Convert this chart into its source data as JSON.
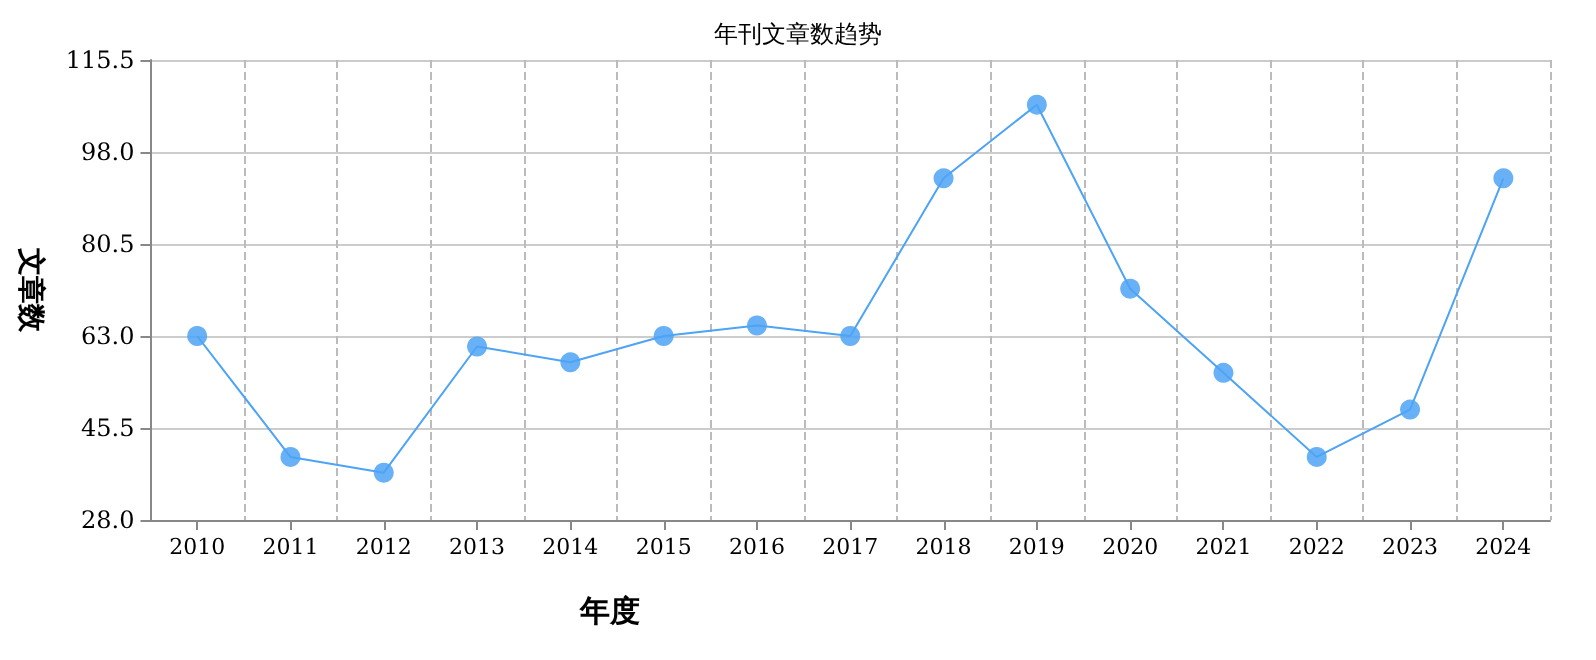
{
  "chart_data": {
    "type": "line",
    "title": "年刊文章数趋势",
    "xlabel": "年度",
    "ylabel": "文章数",
    "categories": [
      "2010",
      "2011",
      "2012",
      "2013",
      "2014",
      "2015",
      "2016",
      "2017",
      "2018",
      "2019",
      "2020",
      "2021",
      "2022",
      "2023",
      "2024"
    ],
    "series": [
      {
        "color": "#4da3f5",
        "values": [
          63,
          40,
          37,
          61,
          58,
          63,
          65,
          63,
          93,
          107,
          72,
          56,
          40,
          49,
          93
        ]
      }
    ],
    "ylim": [
      28,
      115.5
    ],
    "yticks": [
      {
        "value": 28,
        "label": "28.0"
      },
      45.5,
      {
        "value": 63,
        "label": "63.0"
      },
      80.5,
      {
        "value": 98,
        "label": "98.0"
      },
      115.5
    ],
    "grid": true,
    "marker": "circle",
    "line_style": "solid"
  }
}
